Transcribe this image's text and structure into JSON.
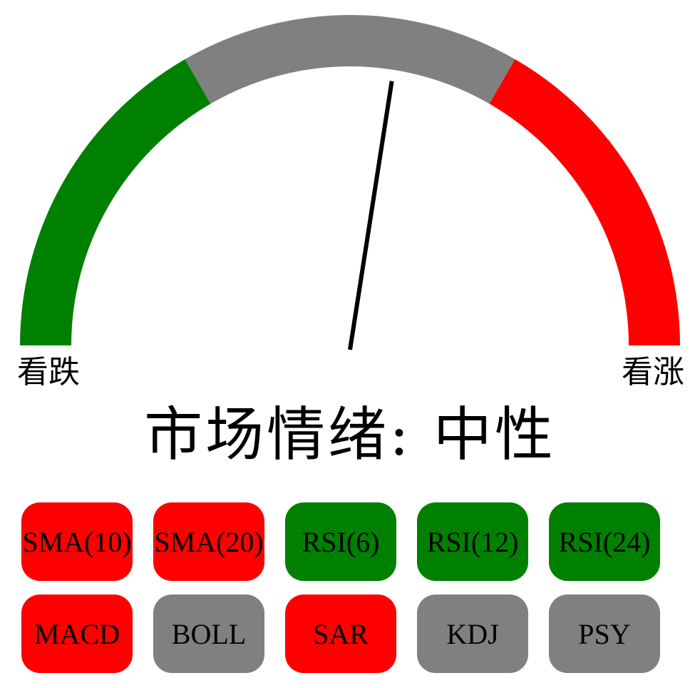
{
  "gauge": {
    "left_label": "看跌",
    "right_label": "看涨",
    "needle_value": 0.55,
    "segments": [
      {
        "signal": "bearish",
        "color": "#008000"
      },
      {
        "signal": "neutral",
        "color": "#808080"
      },
      {
        "signal": "bullish",
        "color": "#ff0000"
      }
    ]
  },
  "sentiment_text": "市场情绪: 中性",
  "colors": {
    "bullish": "#ff0000",
    "bearish": "#008000",
    "neutral": "#808080"
  },
  "indicators": [
    {
      "label": "SMA(10)",
      "signal": "bullish"
    },
    {
      "label": "SMA(20)",
      "signal": "bullish"
    },
    {
      "label": "RSI(6)",
      "signal": "bearish"
    },
    {
      "label": "RSI(12)",
      "signal": "bearish"
    },
    {
      "label": "RSI(24)",
      "signal": "bearish"
    },
    {
      "label": "MACD",
      "signal": "bullish"
    },
    {
      "label": "BOLL",
      "signal": "neutral"
    },
    {
      "label": "SAR",
      "signal": "bullish"
    },
    {
      "label": "KDJ",
      "signal": "neutral"
    },
    {
      "label": "PSY",
      "signal": "neutral"
    }
  ]
}
